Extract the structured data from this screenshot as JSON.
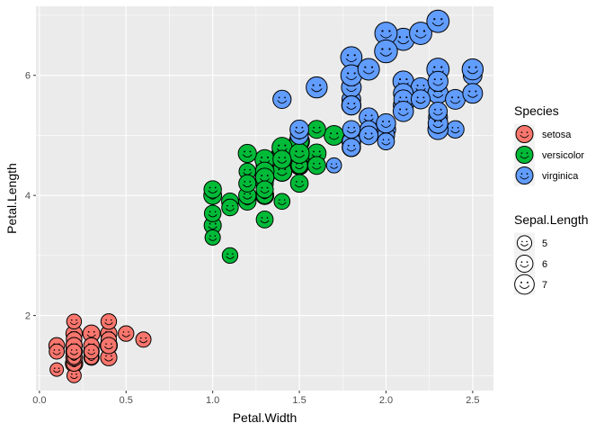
{
  "chart_data": {
    "type": "scatter",
    "xlabel": "Petal.Width",
    "ylabel": "Petal.Length",
    "xlim": [
      -0.02,
      2.62
    ],
    "ylim": [
      0.75,
      7.15
    ],
    "x_ticks": [
      0.0,
      0.5,
      1.0,
      1.5,
      2.0,
      2.5
    ],
    "x_tick_labels": [
      "0.0",
      "0.5",
      "1.0",
      "1.5",
      "2.0",
      "2.5"
    ],
    "y_ticks": [
      2,
      4,
      6
    ],
    "y_tick_labels": [
      "2",
      "4",
      "6"
    ],
    "panel_background": "#ebebeb",
    "grid": true,
    "grid_color": "#ffffff",
    "point_style": "smiley-face",
    "legend_position": "right",
    "color_legend": {
      "title": "Species",
      "entries": [
        {
          "label": "setosa",
          "color": "#F8766D"
        },
        {
          "label": "versicolor",
          "color": "#00BA38"
        },
        {
          "label": "virginica",
          "color": "#619CFF"
        }
      ]
    },
    "size_legend": {
      "title": "Sepal.Length",
      "entries": [
        {
          "label": "5",
          "value": 5
        },
        {
          "label": "6",
          "value": 6
        },
        {
          "label": "7",
          "value": 7
        }
      ]
    },
    "series": [
      {
        "name": "setosa",
        "color": "#F8766D",
        "points": [
          [
            0.2,
            1.4,
            5.1
          ],
          [
            0.2,
            1.4,
            4.9
          ],
          [
            0.2,
            1.3,
            4.7
          ],
          [
            0.2,
            1.5,
            4.6
          ],
          [
            0.2,
            1.4,
            5.0
          ],
          [
            0.4,
            1.7,
            5.4
          ],
          [
            0.3,
            1.4,
            4.6
          ],
          [
            0.2,
            1.5,
            5.0
          ],
          [
            0.2,
            1.4,
            4.4
          ],
          [
            0.1,
            1.5,
            4.9
          ],
          [
            0.2,
            1.5,
            5.4
          ],
          [
            0.2,
            1.6,
            4.8
          ],
          [
            0.1,
            1.4,
            4.8
          ],
          [
            0.1,
            1.1,
            4.3
          ],
          [
            0.2,
            1.2,
            5.8
          ],
          [
            0.4,
            1.5,
            5.7
          ],
          [
            0.4,
            1.3,
            5.4
          ],
          [
            0.3,
            1.4,
            5.1
          ],
          [
            0.3,
            1.7,
            5.7
          ],
          [
            0.3,
            1.5,
            5.1
          ],
          [
            0.2,
            1.7,
            5.4
          ],
          [
            0.4,
            1.5,
            5.1
          ],
          [
            0.2,
            1.0,
            4.6
          ],
          [
            0.5,
            1.7,
            5.1
          ],
          [
            0.2,
            1.9,
            4.8
          ],
          [
            0.2,
            1.6,
            5.0
          ],
          [
            0.4,
            1.6,
            5.0
          ],
          [
            0.2,
            1.5,
            5.2
          ],
          [
            0.2,
            1.4,
            5.2
          ],
          [
            0.2,
            1.6,
            4.7
          ],
          [
            0.2,
            1.6,
            4.8
          ],
          [
            0.4,
            1.5,
            5.4
          ],
          [
            0.1,
            1.5,
            5.2
          ],
          [
            0.2,
            1.4,
            5.5
          ],
          [
            0.2,
            1.5,
            4.9
          ],
          [
            0.2,
            1.2,
            5.0
          ],
          [
            0.2,
            1.3,
            5.5
          ],
          [
            0.1,
            1.4,
            4.9
          ],
          [
            0.2,
            1.3,
            4.4
          ],
          [
            0.2,
            1.5,
            5.1
          ],
          [
            0.3,
            1.3,
            5.0
          ],
          [
            0.3,
            1.3,
            4.5
          ],
          [
            0.2,
            1.3,
            4.4
          ],
          [
            0.6,
            1.6,
            5.0
          ],
          [
            0.4,
            1.9,
            5.1
          ],
          [
            0.3,
            1.4,
            4.8
          ],
          [
            0.2,
            1.6,
            5.1
          ],
          [
            0.2,
            1.4,
            4.6
          ],
          [
            0.2,
            1.5,
            5.3
          ],
          [
            0.2,
            1.4,
            5.0
          ]
        ]
      },
      {
        "name": "versicolor",
        "color": "#00BA38",
        "points": [
          [
            1.4,
            4.7,
            7.0
          ],
          [
            1.5,
            4.5,
            6.4
          ],
          [
            1.5,
            4.9,
            6.9
          ],
          [
            1.3,
            4.0,
            5.5
          ],
          [
            1.5,
            4.6,
            6.5
          ],
          [
            1.3,
            4.5,
            5.7
          ],
          [
            1.6,
            4.7,
            6.3
          ],
          [
            1.0,
            3.3,
            4.9
          ],
          [
            1.3,
            4.6,
            6.6
          ],
          [
            1.4,
            3.9,
            5.2
          ],
          [
            1.0,
            3.5,
            5.0
          ],
          [
            1.5,
            4.2,
            5.9
          ],
          [
            1.0,
            4.0,
            6.0
          ],
          [
            1.4,
            4.7,
            6.1
          ],
          [
            1.3,
            3.6,
            5.6
          ],
          [
            1.4,
            4.4,
            6.7
          ],
          [
            1.5,
            4.5,
            5.6
          ],
          [
            1.0,
            4.1,
            5.8
          ],
          [
            1.5,
            4.5,
            6.2
          ],
          [
            1.1,
            3.9,
            5.6
          ],
          [
            1.8,
            4.8,
            5.9
          ],
          [
            1.3,
            4.0,
            6.1
          ],
          [
            1.5,
            4.9,
            6.3
          ],
          [
            1.2,
            4.7,
            6.1
          ],
          [
            1.3,
            4.3,
            6.4
          ],
          [
            1.4,
            4.4,
            6.6
          ],
          [
            1.4,
            4.8,
            6.8
          ],
          [
            1.7,
            5.0,
            6.7
          ],
          [
            1.5,
            4.5,
            6.0
          ],
          [
            1.0,
            3.5,
            5.7
          ],
          [
            1.1,
            3.8,
            5.5
          ],
          [
            1.0,
            3.7,
            5.5
          ],
          [
            1.2,
            3.9,
            5.8
          ],
          [
            1.6,
            5.1,
            6.0
          ],
          [
            1.5,
            4.5,
            5.4
          ],
          [
            1.6,
            4.5,
            6.0
          ],
          [
            1.5,
            4.7,
            6.7
          ],
          [
            1.3,
            4.4,
            6.3
          ],
          [
            1.3,
            4.1,
            5.6
          ],
          [
            1.3,
            4.0,
            5.5
          ],
          [
            1.2,
            4.4,
            5.5
          ],
          [
            1.4,
            4.6,
            6.1
          ],
          [
            1.2,
            4.0,
            5.8
          ],
          [
            1.0,
            3.3,
            5.0
          ],
          [
            1.3,
            4.2,
            5.6
          ],
          [
            1.2,
            4.2,
            5.7
          ],
          [
            1.3,
            4.2,
            5.7
          ],
          [
            1.3,
            4.3,
            6.2
          ],
          [
            1.1,
            3.0,
            5.1
          ],
          [
            1.3,
            4.1,
            5.7
          ]
        ]
      },
      {
        "name": "virginica",
        "color": "#619CFF",
        "points": [
          [
            2.5,
            6.0,
            6.3
          ],
          [
            1.9,
            5.1,
            5.8
          ],
          [
            2.1,
            5.9,
            7.1
          ],
          [
            1.8,
            5.6,
            6.3
          ],
          [
            2.2,
            5.8,
            6.5
          ],
          [
            2.1,
            6.6,
            7.6
          ],
          [
            1.7,
            4.5,
            4.9
          ],
          [
            1.8,
            6.3,
            7.3
          ],
          [
            1.8,
            5.8,
            6.7
          ],
          [
            2.5,
            6.1,
            7.2
          ],
          [
            2.0,
            5.1,
            6.5
          ],
          [
            1.9,
            5.3,
            6.4
          ],
          [
            2.1,
            5.5,
            6.8
          ],
          [
            2.0,
            5.0,
            5.7
          ],
          [
            2.4,
            5.1,
            5.8
          ],
          [
            2.3,
            5.3,
            6.4
          ],
          [
            1.8,
            5.5,
            6.5
          ],
          [
            2.2,
            6.7,
            7.7
          ],
          [
            2.3,
            6.9,
            7.7
          ],
          [
            1.5,
            5.0,
            6.0
          ],
          [
            2.3,
            5.7,
            6.9
          ],
          [
            2.0,
            4.9,
            5.6
          ],
          [
            2.0,
            6.7,
            7.7
          ],
          [
            1.8,
            4.9,
            6.3
          ],
          [
            2.1,
            5.7,
            6.7
          ],
          [
            1.8,
            6.0,
            7.2
          ],
          [
            1.8,
            4.8,
            6.2
          ],
          [
            1.8,
            4.9,
            6.1
          ],
          [
            2.1,
            5.6,
            6.4
          ],
          [
            1.6,
            5.8,
            7.2
          ],
          [
            1.9,
            6.1,
            7.4
          ],
          [
            2.0,
            6.4,
            7.9
          ],
          [
            2.2,
            5.6,
            6.4
          ],
          [
            1.5,
            5.1,
            6.3
          ],
          [
            1.4,
            5.6,
            6.1
          ],
          [
            2.3,
            6.1,
            7.7
          ],
          [
            2.4,
            5.6,
            6.3
          ],
          [
            1.8,
            5.5,
            6.4
          ],
          [
            1.8,
            4.8,
            6.0
          ],
          [
            2.1,
            5.4,
            6.9
          ],
          [
            2.4,
            5.6,
            6.7
          ],
          [
            2.3,
            5.1,
            6.9
          ],
          [
            1.9,
            5.1,
            5.8
          ],
          [
            2.3,
            5.9,
            6.8
          ],
          [
            2.5,
            5.7,
            6.7
          ],
          [
            2.3,
            5.2,
            6.7
          ],
          [
            1.9,
            5.0,
            6.3
          ],
          [
            2.0,
            5.2,
            6.5
          ],
          [
            2.3,
            5.4,
            6.2
          ],
          [
            1.8,
            5.1,
            5.9
          ]
        ]
      }
    ]
  }
}
